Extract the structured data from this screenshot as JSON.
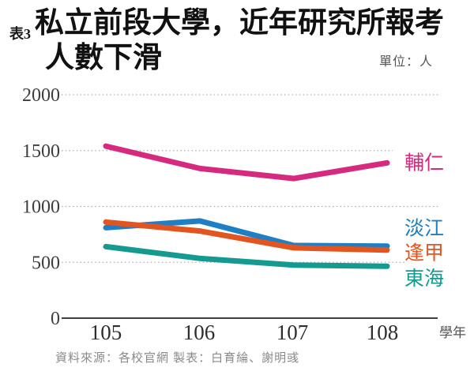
{
  "header": {
    "tag": "表3",
    "title_line1": "私立前段大學，近年研究所報考",
    "title_line2": "人數下滑",
    "unit": "單位：人"
  },
  "chart_data": {
    "type": "line",
    "x": [
      105,
      106,
      107,
      108
    ],
    "xlabel": "學年",
    "ylabel": "",
    "ylim": [
      0,
      2000
    ],
    "yticks": [
      0,
      500,
      1000,
      1500,
      2000
    ],
    "grid": "dotted horizontal gridlines",
    "legend_position": "labels at right end of each line",
    "series": [
      {
        "name": "輔仁",
        "color": "#d62a7e",
        "values": [
          1540,
          1340,
          1250,
          1390
        ]
      },
      {
        "name": "淡江",
        "color": "#1f7fc2",
        "values": [
          810,
          870,
          650,
          645
        ]
      },
      {
        "name": "逢甲",
        "color": "#e25420",
        "values": [
          860,
          780,
          630,
          610
        ]
      },
      {
        "name": "東海",
        "color": "#159a92",
        "values": [
          640,
          535,
          475,
          465
        ]
      }
    ]
  },
  "footer": {
    "source": "資料來源：各校官網 製表：白育綸、謝明彧"
  },
  "colors": {
    "axis": "#3f3f3f",
    "gridline": "#adadad",
    "tick_text": "#3d3d3d",
    "muted_text": "#555555"
  }
}
